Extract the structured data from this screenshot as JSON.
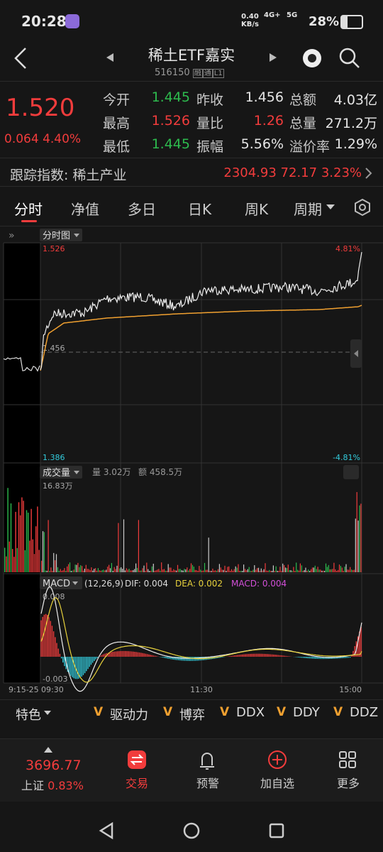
{
  "status_bar": {
    "time": "20:28",
    "net_speed": "0.40",
    "net_unit": "KB/s",
    "signal_1": "4G+",
    "signal_2": "5G",
    "battery": "28%"
  },
  "header": {
    "title": "稀土ETF嘉实",
    "code": "516150",
    "badges": [
      "融",
      "通",
      "L1"
    ]
  },
  "quote": {
    "price": "1.520",
    "change": "0.064",
    "change_pct": "4.40%",
    "rows": [
      [
        [
          "今开",
          "1.445"
        ],
        [
          "昨收",
          "1.456"
        ],
        [
          "总额",
          "4.03亿"
        ]
      ],
      [
        [
          "最高",
          "1.526"
        ],
        [
          "量比",
          "1.26"
        ],
        [
          "总量",
          "271.2万"
        ]
      ],
      [
        [
          "最低",
          "1.445"
        ],
        [
          "振幅",
          "5.56%"
        ],
        [
          "溢价率",
          "1.29%"
        ]
      ]
    ]
  },
  "index": {
    "label": "跟踪指数: 稀土产业",
    "value": "2304.93",
    "change": "72.17",
    "change_pct": "3.23%"
  },
  "tabs": [
    "分时",
    "净值",
    "多日",
    "日K",
    "周K",
    "周期"
  ],
  "chart": {
    "name": "分时图",
    "high": "1.526",
    "high_pct": "4.81%",
    "prev": "1.456",
    "low": "1.386",
    "low_pct": "-4.81%",
    "volume": {
      "name": "成交量",
      "vol": "量 3.02万",
      "amount": "额 458.5万",
      "max": "16.83万"
    },
    "macd": {
      "name": "MACD",
      "params": "(12,26,9)",
      "dif": "DIF: 0.004",
      "dea": "DEA: 0.002",
      "macd": "MACD: 0.004",
      "max": "0.008",
      "min": "-0.003"
    },
    "times": [
      "9:15-25",
      "09:30",
      "11:30",
      "15:00"
    ]
  },
  "indicators": {
    "first": "特色",
    "mark": "V",
    "items": [
      "驱动力",
      "博弈",
      "DDX",
      "DDY",
      "DDZ"
    ]
  },
  "bottom_nav": {
    "index_value": "3696.77",
    "index_name": "上证",
    "index_pct": "0.83%",
    "items": [
      "交易",
      "预警",
      "加自选",
      "更多"
    ]
  }
}
